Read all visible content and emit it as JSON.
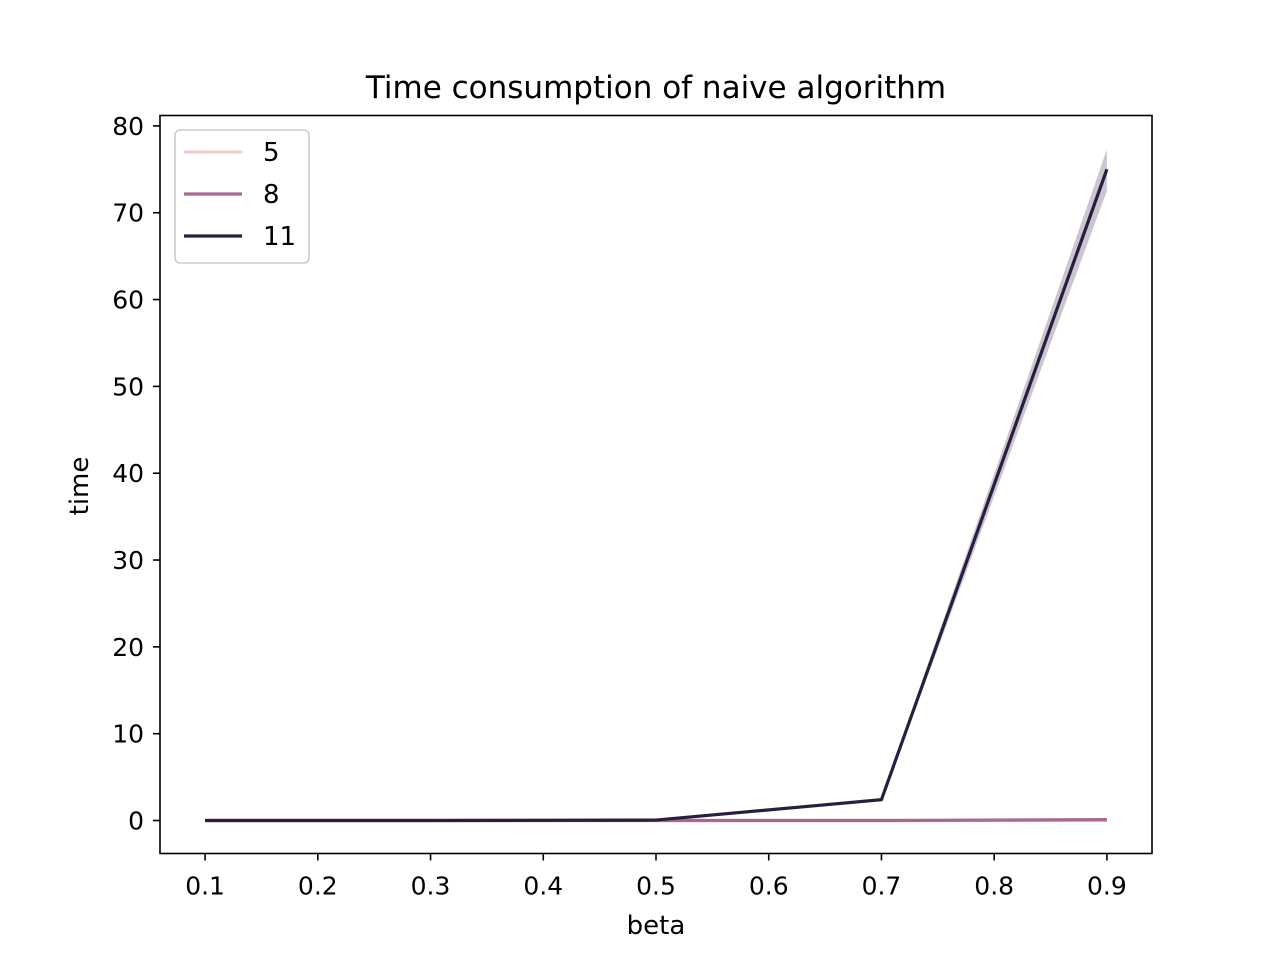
{
  "chart_data": {
    "type": "line",
    "title": "Time consumption of naive algorithm",
    "xlabel": "beta",
    "ylabel": "time",
    "x": [
      0.1,
      0.3,
      0.5,
      0.7,
      0.9
    ],
    "xlim": [
      0.06,
      0.94
    ],
    "ylim": [
      -3.8,
      81.2
    ],
    "xticks": [
      0.1,
      0.2,
      0.3,
      0.4,
      0.5,
      0.6,
      0.7,
      0.8,
      0.9
    ],
    "yticks": [
      0,
      10,
      20,
      30,
      40,
      50,
      60,
      70,
      80
    ],
    "xtick_labels": [
      "0.1",
      "0.2",
      "0.3",
      "0.4",
      "0.5",
      "0.6",
      "0.7",
      "0.8",
      "0.9"
    ],
    "ytick_labels": [
      "0",
      "10",
      "20",
      "30",
      "40",
      "50",
      "60",
      "70",
      "80"
    ],
    "grid": false,
    "legend_position": "top-left",
    "series": [
      {
        "name": "5",
        "color": "#eecfc9",
        "values": [
          0.0,
          0.0,
          0.0,
          0.0,
          0.0
        ]
      },
      {
        "name": "8",
        "color": "#a9688f",
        "values": [
          0.0,
          0.0,
          0.0,
          0.0,
          0.1
        ]
      },
      {
        "name": "11",
        "color": "#2b1d3f",
        "values": [
          0.0,
          0.0,
          0.05,
          2.4,
          75.0
        ],
        "ci_lower": [
          0.0,
          0.0,
          0.05,
          2.2,
          72.5
        ],
        "ci_upper": [
          0.0,
          0.0,
          0.05,
          2.6,
          77.3
        ]
      }
    ]
  }
}
